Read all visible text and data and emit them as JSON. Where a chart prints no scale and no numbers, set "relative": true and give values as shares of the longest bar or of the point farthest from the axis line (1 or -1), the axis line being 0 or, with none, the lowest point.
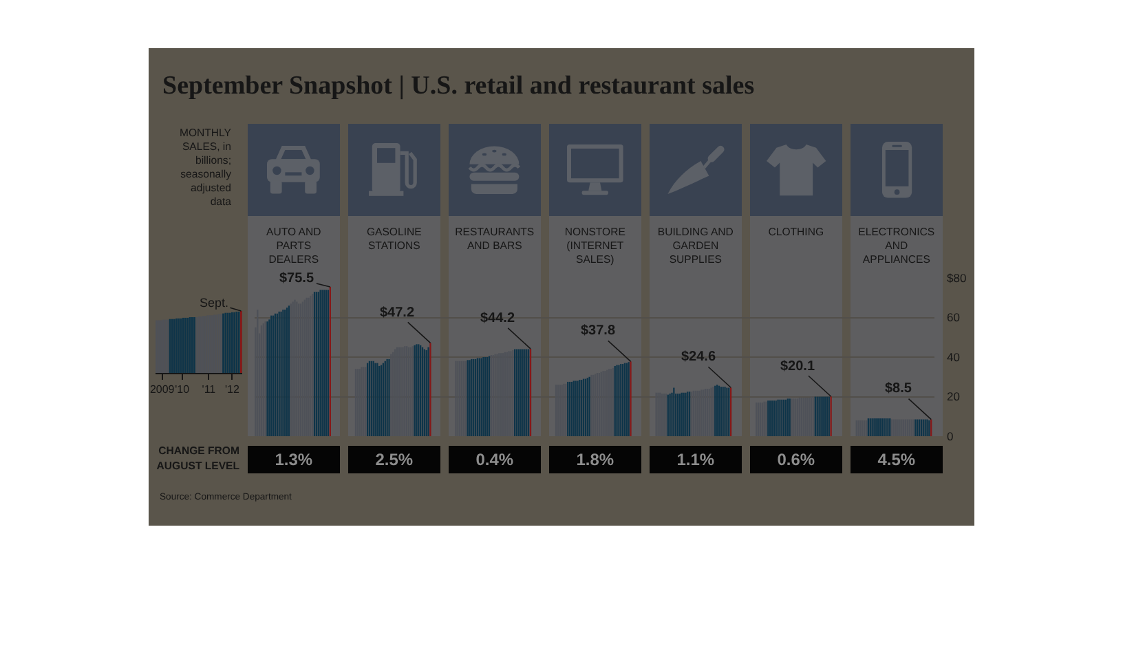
{
  "chart_data": [
    {
      "type": "bar",
      "title": "September Snapshot | U.S. retail and restaurant sales",
      "annotations": [
        "MONTHLY SALES, in billions; seasonally adjusted data",
        {
          "text": "Sept.",
          "x": "2012-09",
          "y": 1
        },
        "CHANGE FROM AUGUST LEVEL",
        "Source: Commerce Department"
      ],
      "relative": true,
      "x": [
        "2009-07",
        "2009-08",
        "2009-09",
        "2009-10",
        "2009-11",
        "2009-12",
        "2010-01",
        "2010-02",
        "2010-03",
        "2010-04",
        "2010-05",
        "2010-06",
        "2010-07",
        "2010-08",
        "2010-09",
        "2010-10",
        "2010-11",
        "2010-12",
        "2011-01",
        "2011-02",
        "2011-03",
        "2011-04",
        "2011-05",
        "2011-06",
        "2011-07",
        "2011-08",
        "2011-09",
        "2011-10",
        "2011-11",
        "2011-12",
        "2012-01",
        "2012-02",
        "2012-03",
        "2012-04",
        "2012-05",
        "2012-06",
        "2012-07",
        "2012-08",
        "2012-09"
      ],
      "values": [
        0.85,
        0.85,
        0.85,
        0.86,
        0.86,
        0.86,
        0.87,
        0.87,
        0.87,
        0.88,
        0.88,
        0.88,
        0.89,
        0.89,
        0.89,
        0.9,
        0.9,
        0.9,
        0.9,
        0.91,
        0.91,
        0.92,
        0.92,
        0.93,
        0.93,
        0.93,
        0.94,
        0.94,
        0.95,
        0.95,
        0.96,
        0.97,
        0.97,
        0.97,
        0.98,
        0.98,
        0.99,
        0.99,
        1
      ],
      "colors": [
        "#4e5158",
        "#4e5158",
        "#4e5158",
        "#4e5158",
        "#4e5158",
        "#4e5158",
        "#0e3449",
        "#0e3449",
        "#0e3449",
        "#0e3449",
        "#0e3449",
        "#0e3449",
        "#0e3449",
        "#0e3449",
        "#0e3449",
        "#0e3449",
        "#0e3449",
        "#0e3449",
        "#4e5158",
        "#4e5158",
        "#4e5158",
        "#4e5158",
        "#4e5158",
        "#4e5158",
        "#4e5158",
        "#4e5158",
        "#4e5158",
        "#4e5158",
        "#4e5158",
        "#4e5158",
        "#0e3449",
        "#0e3449",
        "#0e3449",
        "#0e3449",
        "#0e3449",
        "#0e3449",
        "#0e3449",
        "#0e3449",
        "#861818"
      ],
      "xlim": [
        "2009-06-16",
        "2012-09-16"
      ],
      "xticks": [
        {
          "value": "2009-09-15",
          "label": "2009"
        },
        {
          "value": "2010-06-16",
          "label": "'10"
        },
        {
          "value": "2011-06-16",
          "label": "'11"
        },
        {
          "value": "2012-05-01",
          "label": "'12"
        }
      ]
    },
    {
      "type": "bar",
      "annotations": [
        "AUTO AND PARTS DEALERS",
        "GASOLINE STATIONS",
        "RESTAURANTS AND BARS",
        "NONSTORE (INTERNET SALES)",
        "BUILDING AND GARDEN SUPPLIES",
        "CLOTHING",
        "ELECTRONICS AND APPLIANCES",
        "1.3%",
        "2.5%",
        "0.4%",
        "1.8%",
        "1.1%",
        "0.6%",
        "4.5%"
      ],
      "categories": [
        null,
        null,
        null,
        null,
        null,
        null,
        null,
        null,
        null,
        null,
        null,
        null,
        null,
        null,
        null,
        null,
        null,
        null,
        null,
        null,
        null,
        null,
        null,
        null,
        null,
        null,
        null,
        null,
        null,
        null,
        null,
        null,
        null,
        null,
        null,
        null,
        null,
        null,
        null,
        null,
        null,
        null,
        null,
        null,
        null,
        null,
        null,
        null,
        null,
        null,
        null,
        null,
        null,
        null,
        null,
        null,
        null,
        null,
        null,
        null,
        null,
        null,
        null,
        null,
        null,
        null,
        null,
        null,
        null,
        null,
        null,
        null,
        null,
        null,
        null,
        null,
        null,
        null,
        null,
        null,
        null,
        null,
        null,
        null,
        null,
        null,
        null,
        null,
        null,
        null,
        null,
        null,
        null,
        null,
        null,
        null,
        null,
        null,
        null,
        null,
        null,
        null,
        null,
        null,
        null,
        null,
        null,
        null,
        null,
        null,
        null,
        null,
        null,
        null,
        null,
        null,
        null,
        null,
        null,
        null,
        null,
        null,
        null,
        null,
        null,
        null,
        null,
        null,
        null,
        null,
        null,
        null,
        null,
        null,
        null,
        null,
        null,
        null,
        null,
        null,
        null,
        null,
        null,
        null,
        null,
        null,
        null,
        null,
        null,
        null,
        null,
        null,
        null,
        null,
        null,
        null,
        null,
        null,
        null,
        null,
        null,
        null,
        null,
        null,
        null,
        null,
        null,
        null,
        null,
        null,
        null,
        null,
        null,
        null,
        null,
        null,
        null,
        null,
        null,
        null,
        null,
        null,
        null,
        null,
        null,
        null,
        null,
        null,
        null,
        null,
        null,
        null,
        null,
        null,
        null,
        null,
        null,
        null,
        null,
        null,
        null,
        null,
        null,
        null,
        null,
        null,
        null,
        null,
        null,
        null,
        null,
        null,
        null,
        null,
        null,
        null,
        null,
        null,
        null,
        null,
        null,
        null,
        null,
        null,
        null,
        null,
        null,
        null,
        null,
        null,
        null,
        null,
        null,
        null,
        null,
        null,
        null,
        null,
        null,
        null,
        null,
        null,
        null,
        null,
        null,
        null,
        null,
        null,
        null,
        null,
        null,
        null,
        null,
        null,
        null,
        null,
        null,
        null,
        null,
        null,
        null,
        null,
        null,
        null,
        null,
        null,
        null,
        null,
        null,
        null,
        null,
        null,
        null,
        null,
        null,
        null,
        null,
        null,
        null,
        null,
        null,
        null,
        null,
        null,
        null,
        null,
        null,
        null,
        null,
        null,
        null,
        null,
        null,
        null,
        null,
        null,
        null,
        null,
        null,
        null,
        null,
        null,
        null,
        null,
        null,
        null,
        null,
        null,
        null,
        null,
        null,
        null,
        null,
        null,
        null,
        null,
        null,
        null,
        null,
        null,
        null,
        null,
        null,
        null,
        null,
        null,
        null,
        null,
        null,
        null,
        null,
        null,
        null,
        null,
        null,
        null,
        null,
        null,
        null,
        null,
        null,
        null,
        null,
        null,
        null
      ],
      "values": [
        55,
        64,
        52,
        56,
        57,
        58,
        58,
        59,
        61,
        61,
        62,
        62,
        63,
        63,
        64,
        64,
        65,
        66,
        67,
        68,
        69,
        68,
        67,
        67,
        68,
        69,
        70,
        70,
        71,
        72,
        73,
        73,
        73,
        74,
        74,
        74,
        74,
        74,
        75.5,
        null,
        null,
        null,
        null,
        null,
        null,
        null,
        null,
        null,
        null,
        null,
        null,
        34,
        34,
        34,
        35,
        35,
        35,
        37,
        38,
        38,
        38,
        37,
        37,
        35.5,
        36,
        37,
        38,
        39,
        39,
        41.5,
        42.5,
        44,
        45,
        45,
        45,
        45,
        45.5,
        45.5,
        45,
        45,
        45.5,
        46,
        46.5,
        46.5,
        46,
        45,
        44,
        43.5,
        45,
        47.2,
        null,
        null,
        null,
        null,
        null,
        null,
        null,
        null,
        null,
        null,
        null,
        null,
        38,
        38,
        38,
        38,
        38,
        38,
        38.5,
        38.5,
        39,
        39,
        39,
        39.5,
        39.5,
        39.5,
        40,
        40,
        40,
        40.5,
        41,
        41,
        41.5,
        41.5,
        42,
        42,
        42,
        42.5,
        42.5,
        43,
        43,
        43.5,
        44,
        44,
        44,
        44,
        44,
        44,
        44,
        44,
        44.2,
        null,
        null,
        null,
        null,
        null,
        null,
        null,
        null,
        null,
        null,
        null,
        null,
        26,
        26,
        26,
        26,
        26.5,
        26.5,
        27.5,
        27.5,
        27.5,
        28,
        28,
        28,
        28.5,
        28.5,
        29,
        29,
        29.5,
        30,
        31,
        31,
        31.5,
        32,
        32,
        32.5,
        33,
        33,
        33.5,
        34,
        34,
        34.5,
        35.5,
        36,
        36,
        36.5,
        36.5,
        37,
        37,
        37.5,
        37.8,
        null,
        null,
        null,
        null,
        null,
        null,
        null,
        null,
        null,
        null,
        null,
        null,
        22,
        22,
        22,
        21.5,
        21.5,
        21.5,
        21,
        21.5,
        22,
        24.5,
        21.5,
        21.5,
        21.5,
        22,
        22,
        22,
        22.5,
        22.5,
        22.5,
        23,
        23,
        23,
        23,
        23.5,
        23.5,
        24,
        24,
        24,
        24.5,
        25,
        25.5,
        26,
        25.5,
        25,
        25,
        25,
        24.5,
        24.5,
        24.6,
        null,
        null,
        null,
        null,
        null,
        null,
        null,
        null,
        null,
        null,
        null,
        null,
        17,
        17,
        17,
        17,
        17.5,
        17.5,
        18,
        18,
        18,
        18,
        18,
        18.5,
        18.5,
        18.5,
        18.5,
        18.5,
        19,
        19,
        19,
        19,
        19,
        19,
        19.5,
        19.5,
        19.5,
        19.5,
        19.5,
        19.5,
        20,
        20,
        20,
        20,
        20,
        20,
        20,
        20,
        20,
        20,
        20.1,
        null,
        null,
        null,
        null,
        null,
        null,
        null,
        null,
        null,
        null,
        null,
        null,
        8,
        8,
        8,
        8,
        8,
        8,
        9,
        9,
        9,
        9,
        9,
        9,
        9,
        9,
        9,
        9,
        9,
        9,
        8.5,
        8.5,
        8.5,
        8.5,
        8.5,
        8.5,
        8.5,
        8.5,
        8.5,
        8.5,
        8.5,
        8.5,
        8.5,
        8.5,
        8.5,
        8.5,
        8.5,
        8.5,
        8.5,
        8,
        8.5
      ],
      "colors": [
        "#4e5158",
        "#4e5158",
        "#4e5158",
        "#4e5158",
        "#4e5158",
        "#4e5158",
        "#0e3449",
        "#0e3449",
        "#0e3449",
        "#0e3449",
        "#0e3449",
        "#0e3449",
        "#0e3449",
        "#0e3449",
        "#0e3449",
        "#0e3449",
        "#0e3449",
        "#0e3449",
        "#4e5158",
        "#4e5158",
        "#4e5158",
        "#4e5158",
        "#4e5158",
        "#4e5158",
        "#4e5158",
        "#4e5158",
        "#4e5158",
        "#4e5158",
        "#4e5158",
        "#4e5158",
        "#0e3449",
        "#0e3449",
        "#0e3449",
        "#0e3449",
        "#0e3449",
        "#0e3449",
        "#0e3449",
        "#0e3449",
        "#861818",
        null,
        null,
        null,
        null,
        null,
        null,
        null,
        null,
        null,
        null,
        null,
        null,
        "#4e5158",
        "#4e5158",
        "#4e5158",
        "#4e5158",
        "#4e5158",
        "#4e5158",
        "#0e3449",
        "#0e3449",
        "#0e3449",
        "#0e3449",
        "#0e3449",
        "#0e3449",
        "#0e3449",
        "#0e3449",
        "#0e3449",
        "#0e3449",
        "#0e3449",
        "#0e3449",
        "#4e5158",
        "#4e5158",
        "#4e5158",
        "#4e5158",
        "#4e5158",
        "#4e5158",
        "#4e5158",
        "#4e5158",
        "#4e5158",
        "#4e5158",
        "#4e5158",
        "#4e5158",
        "#0e3449",
        "#0e3449",
        "#0e3449",
        "#0e3449",
        "#0e3449",
        "#0e3449",
        "#0e3449",
        "#0e3449",
        "#861818",
        null,
        null,
        null,
        null,
        null,
        null,
        null,
        null,
        null,
        null,
        null,
        null,
        "#4e5158",
        "#4e5158",
        "#4e5158",
        "#4e5158",
        "#4e5158",
        "#4e5158",
        "#0e3449",
        "#0e3449",
        "#0e3449",
        "#0e3449",
        "#0e3449",
        "#0e3449",
        "#0e3449",
        "#0e3449",
        "#0e3449",
        "#0e3449",
        "#0e3449",
        "#0e3449",
        "#4e5158",
        "#4e5158",
        "#4e5158",
        "#4e5158",
        "#4e5158",
        "#4e5158",
        "#4e5158",
        "#4e5158",
        "#4e5158",
        "#4e5158",
        "#4e5158",
        "#4e5158",
        "#0e3449",
        "#0e3449",
        "#0e3449",
        "#0e3449",
        "#0e3449",
        "#0e3449",
        "#0e3449",
        "#0e3449",
        "#861818",
        null,
        null,
        null,
        null,
        null,
        null,
        null,
        null,
        null,
        null,
        null,
        null,
        "#4e5158",
        "#4e5158",
        "#4e5158",
        "#4e5158",
        "#4e5158",
        "#4e5158",
        "#0e3449",
        "#0e3449",
        "#0e3449",
        "#0e3449",
        "#0e3449",
        "#0e3449",
        "#0e3449",
        "#0e3449",
        "#0e3449",
        "#0e3449",
        "#0e3449",
        "#0e3449",
        "#4e5158",
        "#4e5158",
        "#4e5158",
        "#4e5158",
        "#4e5158",
        "#4e5158",
        "#4e5158",
        "#4e5158",
        "#4e5158",
        "#4e5158",
        "#4e5158",
        "#4e5158",
        "#0e3449",
        "#0e3449",
        "#0e3449",
        "#0e3449",
        "#0e3449",
        "#0e3449",
        "#0e3449",
        "#0e3449",
        "#861818",
        null,
        null,
        null,
        null,
        null,
        null,
        null,
        null,
        null,
        null,
        null,
        null,
        "#4e5158",
        "#4e5158",
        "#4e5158",
        "#4e5158",
        "#4e5158",
        "#4e5158",
        "#0e3449",
        "#0e3449",
        "#0e3449",
        "#0e3449",
        "#0e3449",
        "#0e3449",
        "#0e3449",
        "#0e3449",
        "#0e3449",
        "#0e3449",
        "#0e3449",
        "#0e3449",
        "#4e5158",
        "#4e5158",
        "#4e5158",
        "#4e5158",
        "#4e5158",
        "#4e5158",
        "#4e5158",
        "#4e5158",
        "#4e5158",
        "#4e5158",
        "#4e5158",
        "#4e5158",
        "#0e3449",
        "#0e3449",
        "#0e3449",
        "#0e3449",
        "#0e3449",
        "#0e3449",
        "#0e3449",
        "#0e3449",
        "#861818",
        null,
        null,
        null,
        null,
        null,
        null,
        null,
        null,
        null,
        null,
        null,
        null,
        "#4e5158",
        "#4e5158",
        "#4e5158",
        "#4e5158",
        "#4e5158",
        "#4e5158",
        "#0e3449",
        "#0e3449",
        "#0e3449",
        "#0e3449",
        "#0e3449",
        "#0e3449",
        "#0e3449",
        "#0e3449",
        "#0e3449",
        "#0e3449",
        "#0e3449",
        "#0e3449",
        "#4e5158",
        "#4e5158",
        "#4e5158",
        "#4e5158",
        "#4e5158",
        "#4e5158",
        "#4e5158",
        "#4e5158",
        "#4e5158",
        "#4e5158",
        "#4e5158",
        "#4e5158",
        "#0e3449",
        "#0e3449",
        "#0e3449",
        "#0e3449",
        "#0e3449",
        "#0e3449",
        "#0e3449",
        "#0e3449",
        "#861818",
        null,
        null,
        null,
        null,
        null,
        null,
        null,
        null,
        null,
        null,
        null,
        null,
        "#4e5158",
        "#4e5158",
        "#4e5158",
        "#4e5158",
        "#4e5158",
        "#4e5158",
        "#0e3449",
        "#0e3449",
        "#0e3449",
        "#0e3449",
        "#0e3449",
        "#0e3449",
        "#0e3449",
        "#0e3449",
        "#0e3449",
        "#0e3449",
        "#0e3449",
        "#0e3449",
        "#4e5158",
        "#4e5158",
        "#4e5158",
        "#4e5158",
        "#4e5158",
        "#4e5158",
        "#4e5158",
        "#4e5158",
        "#4e5158",
        "#4e5158",
        "#4e5158",
        "#4e5158",
        "#0e3449",
        "#0e3449",
        "#0e3449",
        "#0e3449",
        "#0e3449",
        "#0e3449",
        "#0e3449",
        "#0e3449",
        "#861818"
      ],
      "value_labels": [
        null,
        null,
        null,
        null,
        null,
        null,
        null,
        null,
        null,
        null,
        null,
        null,
        null,
        null,
        null,
        null,
        null,
        null,
        null,
        null,
        null,
        null,
        null,
        null,
        null,
        null,
        null,
        null,
        null,
        null,
        null,
        null,
        null,
        null,
        null,
        null,
        null,
        null,
        "$75.5",
        null,
        null,
        null,
        null,
        null,
        null,
        null,
        null,
        null,
        null,
        null,
        null,
        null,
        null,
        null,
        null,
        null,
        null,
        null,
        null,
        null,
        null,
        null,
        null,
        null,
        null,
        null,
        null,
        null,
        null,
        null,
        null,
        null,
        null,
        null,
        null,
        null,
        null,
        null,
        null,
        null,
        null,
        null,
        null,
        null,
        null,
        null,
        null,
        null,
        null,
        "$47.2",
        null,
        null,
        null,
        null,
        null,
        null,
        null,
        null,
        null,
        null,
        null,
        null,
        null,
        null,
        null,
        null,
        null,
        null,
        null,
        null,
        null,
        null,
        null,
        null,
        null,
        null,
        null,
        null,
        null,
        null,
        null,
        null,
        null,
        null,
        null,
        null,
        null,
        null,
        null,
        null,
        null,
        null,
        null,
        null,
        null,
        null,
        null,
        null,
        null,
        null,
        "$44.2",
        null,
        null,
        null,
        null,
        null,
        null,
        null,
        null,
        null,
        null,
        null,
        null,
        null,
        null,
        null,
        null,
        null,
        null,
        null,
        null,
        null,
        null,
        null,
        null,
        null,
        null,
        null,
        null,
        null,
        null,
        null,
        null,
        null,
        null,
        null,
        null,
        null,
        null,
        null,
        null,
        null,
        null,
        null,
        null,
        null,
        null,
        null,
        null,
        null,
        null,
        "$37.8",
        null,
        null,
        null,
        null,
        null,
        null,
        null,
        null,
        null,
        null,
        null,
        null,
        null,
        null,
        null,
        null,
        null,
        null,
        null,
        null,
        null,
        null,
        null,
        null,
        null,
        null,
        null,
        null,
        null,
        null,
        null,
        null,
        null,
        null,
        null,
        null,
        null,
        null,
        null,
        null,
        null,
        null,
        null,
        null,
        null,
        null,
        null,
        null,
        null,
        null,
        "$24.6",
        null,
        null,
        null,
        null,
        null,
        null,
        null,
        null,
        null,
        null,
        null,
        null,
        null,
        null,
        null,
        null,
        null,
        null,
        null,
        null,
        null,
        null,
        null,
        null,
        null,
        null,
        null,
        null,
        null,
        null,
        null,
        null,
        null,
        null,
        null,
        null,
        null,
        null,
        null,
        null,
        null,
        null,
        null,
        null,
        null,
        null,
        null,
        null,
        null,
        null,
        "$20.1",
        null,
        null,
        null,
        null,
        null,
        null,
        null,
        null,
        null,
        null,
        null,
        null,
        null,
        null,
        null,
        null,
        null,
        null,
        null,
        null,
        null,
        null,
        null,
        null,
        null,
        null,
        null,
        null,
        null,
        null,
        null,
        null,
        null,
        null,
        null,
        null,
        null,
        null,
        null,
        null,
        null,
        null,
        null,
        null,
        null,
        null,
        null,
        null,
        null,
        null,
        "$8.5"
      ],
      "ylim": [
        0,
        80
      ],
      "yticks": [
        0,
        20,
        40,
        60,
        {
          "value": 80,
          "label": "$80"
        }
      ],
      "grid": "y",
      "tick_labels": "y"
    }
  ]
}
